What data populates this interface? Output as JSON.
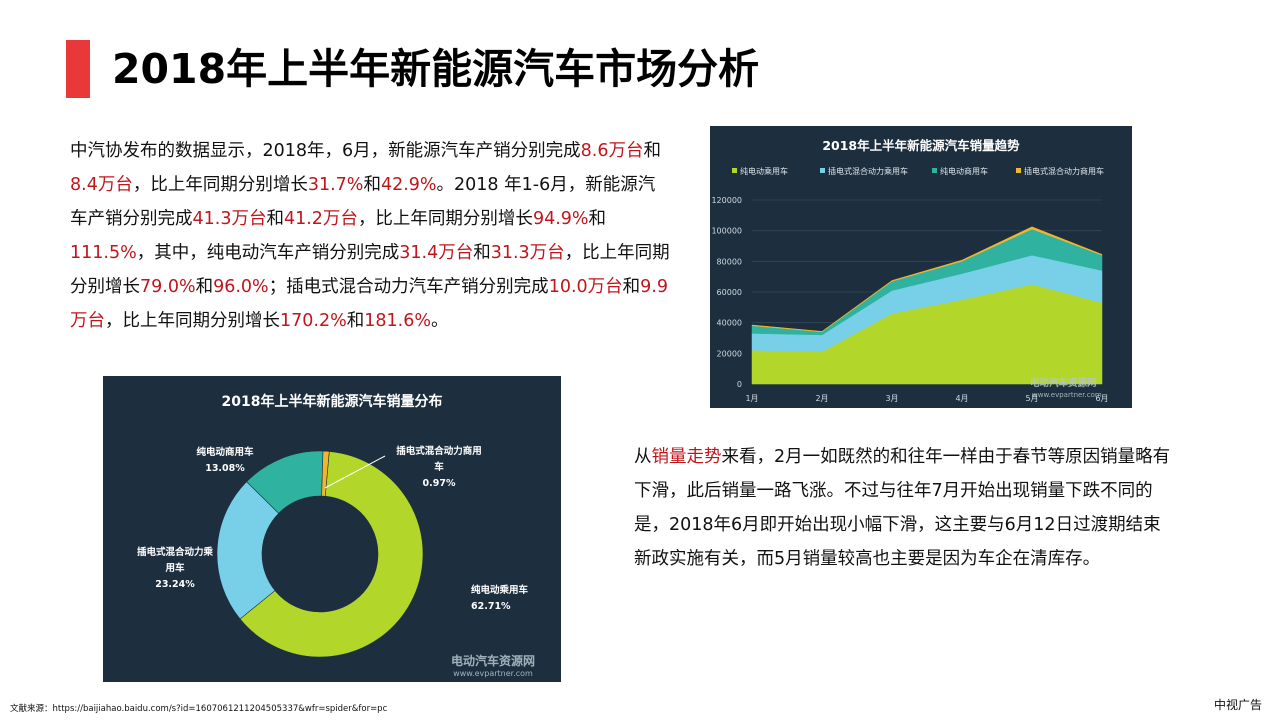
{
  "title": "2018年上半年新能源汽车市场分析",
  "paragraph1": [
    {
      "t": "中汽协发布的数据显示，2018年，6月，新能源汽车产销分别完成",
      "h": false
    },
    {
      "t": "8.6万台",
      "h": true
    },
    {
      "t": "和",
      "h": false
    },
    {
      "t": "8.4万台",
      "h": true
    },
    {
      "t": "，比上年同期分别增长",
      "h": false
    },
    {
      "t": "31.7%",
      "h": true
    },
    {
      "t": "和",
      "h": false
    },
    {
      "t": "42.9%",
      "h": true
    },
    {
      "t": "。2018 年1-6月，新能源汽车产销分别完成",
      "h": false
    },
    {
      "t": "41.3万台",
      "h": true
    },
    {
      "t": "和",
      "h": false
    },
    {
      "t": "41.2万台",
      "h": true
    },
    {
      "t": "，比上年同期分别增长",
      "h": false
    },
    {
      "t": "94.9%",
      "h": true
    },
    {
      "t": "和",
      "h": false
    },
    {
      "t": "111.5%",
      "h": true
    },
    {
      "t": "，其中，纯电动汽车产销分别完成",
      "h": false
    },
    {
      "t": "31.4万台",
      "h": true
    },
    {
      "t": "和",
      "h": false
    },
    {
      "t": "31.3万台",
      "h": true
    },
    {
      "t": "，比上年同期分别增长",
      "h": false
    },
    {
      "t": "79.0%",
      "h": true
    },
    {
      "t": "和",
      "h": false
    },
    {
      "t": "96.0%",
      "h": true
    },
    {
      "t": "；插电式混合动力汽车产销分别完成",
      "h": false
    },
    {
      "t": "10.0万台",
      "h": true
    },
    {
      "t": "和",
      "h": false
    },
    {
      "t": "9.9万台",
      "h": true
    },
    {
      "t": "，比上年同期分别增长",
      "h": false
    },
    {
      "t": "170.2%",
      "h": true
    },
    {
      "t": "和",
      "h": false
    },
    {
      "t": "181.6%",
      "h": true
    },
    {
      "t": "。",
      "h": false
    }
  ],
  "paragraph2": [
    {
      "t": "从",
      "h": false
    },
    {
      "t": "销量走势",
      "h": true
    },
    {
      "t": "来看，2月一如既然的和往年一样由于春节等原因销量略有下滑，此后销量一路飞涨。不过与往年7月开始出现销量下跌不同的是，2018年6月即开始出现小幅下滑，这主要与6月12日过渡期结束新政实施有关，而5月销量较高也主要是因为车企在清库存。",
      "h": false
    }
  ],
  "source": "文献来源：https://baijiahao.baidu.com/s?id=1607061211204505337&wfr=spider&for=pc",
  "brand": "中视广告",
  "colors": {
    "accent": "#e8383a",
    "highlight": "#c0161b",
    "panel": "#1d2f3f"
  },
  "chart_data": [
    {
      "type": "area",
      "stacked": true,
      "title": "2018年上半年新能源汽车销量趋势",
      "categories": [
        "1月",
        "2月",
        "3月",
        "4月",
        "5月",
        "6月"
      ],
      "ylim": [
        0,
        120000
      ],
      "yticks": [
        0,
        20000,
        40000,
        60000,
        80000,
        100000,
        120000
      ],
      "legend_position": "top",
      "grid": true,
      "watermark": "电动汽车资源网\nwww.evpartner.com",
      "series": [
        {
          "name": "纯电动乘用车",
          "color": "#b3d62a",
          "values": [
            22000,
            21000,
            46000,
            55000,
            65000,
            53000
          ]
        },
        {
          "name": "插电式混合动力乘用车",
          "color": "#78cfe8",
          "values": [
            11000,
            11000,
            15000,
            17000,
            19000,
            21000
          ]
        },
        {
          "name": "纯电动商用车",
          "color": "#2fb3a0",
          "values": [
            5000,
            2000,
            6000,
            8000,
            17000,
            10000
          ]
        },
        {
          "name": "插电式混合动力商用车",
          "color": "#f1b62b",
          "values": [
            500,
            300,
            500,
            800,
            1500,
            500
          ]
        }
      ]
    },
    {
      "type": "pie",
      "donut": true,
      "title": "2018年上半年新能源汽车销量分布",
      "watermark": "电动汽车资源网\nwww.evpartner.com",
      "slices": [
        {
          "name": "纯电动乘用车",
          "value": 62.71,
          "label": "62.71%",
          "color": "#b3d62a"
        },
        {
          "name": "插电式混合动力乘用车",
          "value": 23.24,
          "label": "23.24%",
          "color": "#78cfe8"
        },
        {
          "name": "纯电动商用车",
          "value": 13.08,
          "label": "13.08%",
          "color": "#2fb3a0"
        },
        {
          "name": "插电式混合动力商用车",
          "value": 0.97,
          "label": "0.97%",
          "color": "#f1b62b"
        }
      ]
    }
  ]
}
